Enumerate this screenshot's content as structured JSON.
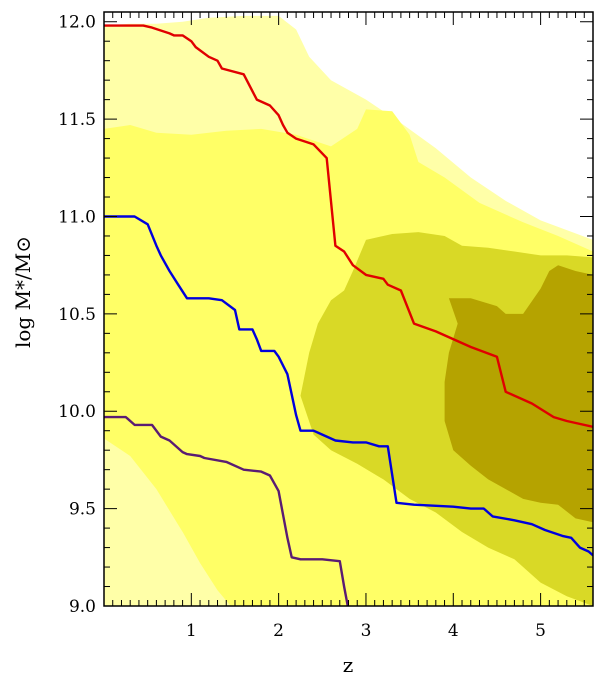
{
  "chart_data": {
    "type": "area",
    "title": "",
    "xlabel": "z",
    "ylabel": "log M*/M⊙",
    "xlim": [
      0.0,
      5.6
    ],
    "ylim": [
      9.0,
      12.05
    ],
    "xticks": [
      1,
      2,
      3,
      4,
      5
    ],
    "xtick_labels": [
      "1",
      "2",
      "3",
      "4",
      "5"
    ],
    "yticks": [
      9.0,
      9.5,
      10.0,
      10.5,
      11.0,
      11.5,
      12.0
    ],
    "ytick_labels": [
      "9.0",
      "9.5",
      "10.0",
      "10.5",
      "11.0",
      "11.5",
      "12.0"
    ],
    "grid": false,
    "regions": [
      {
        "color": "#FFFFA8",
        "points": [
          [
            0.0,
            11.98
          ],
          [
            0.3,
            11.99
          ],
          [
            0.6,
            11.99
          ],
          [
            0.9,
            12.0
          ],
          [
            1.2,
            12.02
          ],
          [
            1.6,
            12.03
          ],
          [
            2.0,
            12.03
          ],
          [
            2.2,
            11.96
          ],
          [
            2.35,
            11.82
          ],
          [
            2.6,
            11.7
          ],
          [
            3.0,
            11.6
          ],
          [
            3.4,
            11.48
          ],
          [
            3.8,
            11.35
          ],
          [
            4.2,
            11.2
          ],
          [
            4.6,
            11.08
          ],
          [
            5.0,
            10.98
          ],
          [
            5.3,
            10.93
          ],
          [
            5.6,
            10.88
          ],
          [
            5.6,
            9.0
          ],
          [
            0.0,
            9.0
          ]
        ]
      },
      {
        "color": "#FFFF66",
        "points": [
          [
            0.0,
            11.45
          ],
          [
            0.3,
            11.47
          ],
          [
            0.6,
            11.43
          ],
          [
            1.0,
            11.42
          ],
          [
            1.4,
            11.44
          ],
          [
            1.8,
            11.45
          ],
          [
            2.2,
            11.42
          ],
          [
            2.6,
            11.36
          ],
          [
            2.9,
            11.45
          ],
          [
            3.0,
            11.55
          ],
          [
            3.3,
            11.54
          ],
          [
            3.5,
            11.42
          ],
          [
            3.6,
            11.28
          ],
          [
            3.9,
            11.2
          ],
          [
            4.3,
            11.07
          ],
          [
            4.8,
            10.97
          ],
          [
            5.2,
            10.9
          ],
          [
            5.6,
            10.82
          ],
          [
            5.6,
            9.0
          ],
          [
            1.45,
            9.0
          ],
          [
            1.3,
            9.08
          ],
          [
            1.1,
            9.22
          ],
          [
            0.9,
            9.38
          ],
          [
            0.6,
            9.58
          ],
          [
            0.3,
            9.75
          ],
          [
            0.0,
            9.83
          ]
        ]
      },
      {
        "color": "#FFFFA8",
        "points": [
          [
            0.0,
            9.86
          ],
          [
            0.3,
            9.77
          ],
          [
            0.6,
            9.6
          ],
          [
            0.9,
            9.38
          ],
          [
            1.1,
            9.22
          ],
          [
            1.3,
            9.08
          ],
          [
            1.45,
            9.0
          ],
          [
            0.0,
            9.0
          ]
        ]
      },
      {
        "color": "#D9D926",
        "points": [
          [
            2.25,
            10.08
          ],
          [
            2.35,
            10.3
          ],
          [
            2.45,
            10.45
          ],
          [
            2.6,
            10.57
          ],
          [
            2.75,
            10.62
          ],
          [
            2.85,
            10.72
          ],
          [
            3.0,
            10.88
          ],
          [
            3.3,
            10.91
          ],
          [
            3.6,
            10.92
          ],
          [
            3.9,
            10.9
          ],
          [
            4.1,
            10.85
          ],
          [
            4.4,
            10.84
          ],
          [
            4.7,
            10.82
          ],
          [
            5.0,
            10.8
          ],
          [
            5.3,
            10.8
          ],
          [
            5.6,
            10.79
          ],
          [
            5.6,
            9.0
          ],
          [
            5.3,
            9.05
          ],
          [
            5.0,
            9.12
          ],
          [
            4.7,
            9.24
          ],
          [
            4.4,
            9.3
          ],
          [
            4.1,
            9.38
          ],
          [
            3.8,
            9.48
          ],
          [
            3.5,
            9.55
          ],
          [
            3.2,
            9.65
          ],
          [
            2.9,
            9.73
          ],
          [
            2.6,
            9.8
          ],
          [
            2.4,
            9.88
          ]
        ]
      },
      {
        "color": "#B5A300",
        "points": [
          [
            3.95,
            10.58
          ],
          [
            4.2,
            10.58
          ],
          [
            4.5,
            10.54
          ],
          [
            4.6,
            10.5
          ],
          [
            4.8,
            10.5
          ],
          [
            5.0,
            10.63
          ],
          [
            5.1,
            10.72
          ],
          [
            5.2,
            10.75
          ],
          [
            5.4,
            10.72
          ],
          [
            5.6,
            10.7
          ],
          [
            5.6,
            9.43
          ],
          [
            5.4,
            9.45
          ],
          [
            5.2,
            9.52
          ],
          [
            5.0,
            9.53
          ],
          [
            4.8,
            9.55
          ],
          [
            4.6,
            9.6
          ],
          [
            4.4,
            9.65
          ],
          [
            4.2,
            9.72
          ],
          [
            4.0,
            9.8
          ],
          [
            3.9,
            9.95
          ],
          [
            3.9,
            10.15
          ],
          [
            3.95,
            10.3
          ],
          [
            4.05,
            10.45
          ]
        ]
      }
    ],
    "series": [
      {
        "color": "#E00000",
        "points": [
          [
            0.0,
            11.98
          ],
          [
            0.45,
            11.98
          ],
          [
            0.55,
            11.97
          ],
          [
            0.75,
            11.94
          ],
          [
            0.8,
            11.93
          ],
          [
            0.9,
            11.93
          ],
          [
            1.0,
            11.9
          ],
          [
            1.05,
            11.87
          ],
          [
            1.2,
            11.82
          ],
          [
            1.3,
            11.8
          ],
          [
            1.35,
            11.76
          ],
          [
            1.6,
            11.73
          ],
          [
            1.75,
            11.6
          ],
          [
            1.9,
            11.57
          ],
          [
            2.0,
            11.52
          ],
          [
            2.05,
            11.47
          ],
          [
            2.1,
            11.43
          ],
          [
            2.2,
            11.4
          ],
          [
            2.4,
            11.37
          ],
          [
            2.55,
            11.3
          ],
          [
            2.65,
            10.85
          ],
          [
            2.75,
            10.82
          ],
          [
            2.85,
            10.75
          ],
          [
            3.0,
            10.7
          ],
          [
            3.2,
            10.68
          ],
          [
            3.25,
            10.65
          ],
          [
            3.4,
            10.62
          ],
          [
            3.55,
            10.45
          ],
          [
            3.8,
            10.41
          ],
          [
            4.2,
            10.33
          ],
          [
            4.5,
            10.28
          ],
          [
            4.6,
            10.1
          ],
          [
            4.9,
            10.04
          ],
          [
            5.15,
            9.97
          ],
          [
            5.3,
            9.95
          ],
          [
            5.6,
            9.92
          ]
        ]
      },
      {
        "color": "#0000DD",
        "points": [
          [
            0.0,
            11.0
          ],
          [
            0.35,
            11.0
          ],
          [
            0.5,
            10.96
          ],
          [
            0.6,
            10.85
          ],
          [
            0.65,
            10.8
          ],
          [
            0.75,
            10.72
          ],
          [
            0.85,
            10.65
          ],
          [
            0.95,
            10.58
          ],
          [
            1.2,
            10.58
          ],
          [
            1.35,
            10.57
          ],
          [
            1.5,
            10.52
          ],
          [
            1.55,
            10.42
          ],
          [
            1.7,
            10.42
          ],
          [
            1.75,
            10.37
          ],
          [
            1.8,
            10.31
          ],
          [
            1.95,
            10.31
          ],
          [
            2.0,
            10.28
          ],
          [
            2.1,
            10.19
          ],
          [
            2.2,
            9.98
          ],
          [
            2.25,
            9.9
          ],
          [
            2.4,
            9.9
          ],
          [
            2.5,
            9.88
          ],
          [
            2.65,
            9.85
          ],
          [
            2.85,
            9.84
          ],
          [
            3.0,
            9.84
          ],
          [
            3.15,
            9.82
          ],
          [
            3.25,
            9.82
          ],
          [
            3.35,
            9.53
          ],
          [
            3.55,
            9.52
          ],
          [
            4.0,
            9.51
          ],
          [
            4.2,
            9.5
          ],
          [
            4.35,
            9.5
          ],
          [
            4.45,
            9.46
          ],
          [
            4.7,
            9.44
          ],
          [
            4.9,
            9.42
          ],
          [
            5.05,
            9.39
          ],
          [
            5.25,
            9.36
          ],
          [
            5.35,
            9.35
          ],
          [
            5.45,
            9.3
          ],
          [
            5.55,
            9.28
          ],
          [
            5.6,
            9.26
          ]
        ]
      },
      {
        "color": "#5A1C73",
        "points": [
          [
            0.0,
            9.97
          ],
          [
            0.25,
            9.97
          ],
          [
            0.35,
            9.93
          ],
          [
            0.55,
            9.93
          ],
          [
            0.65,
            9.87
          ],
          [
            0.75,
            9.85
          ],
          [
            0.9,
            9.79
          ],
          [
            0.95,
            9.78
          ],
          [
            1.1,
            9.77
          ],
          [
            1.15,
            9.76
          ],
          [
            1.4,
            9.74
          ],
          [
            1.6,
            9.7
          ],
          [
            1.8,
            9.69
          ],
          [
            1.9,
            9.67
          ],
          [
            2.0,
            9.59
          ],
          [
            2.05,
            9.47
          ],
          [
            2.1,
            9.35
          ],
          [
            2.15,
            9.25
          ],
          [
            2.25,
            9.24
          ],
          [
            2.5,
            9.24
          ],
          [
            2.7,
            9.23
          ],
          [
            2.75,
            9.1
          ],
          [
            2.8,
            8.98
          ],
          [
            2.9,
            8.98
          ]
        ]
      }
    ]
  }
}
